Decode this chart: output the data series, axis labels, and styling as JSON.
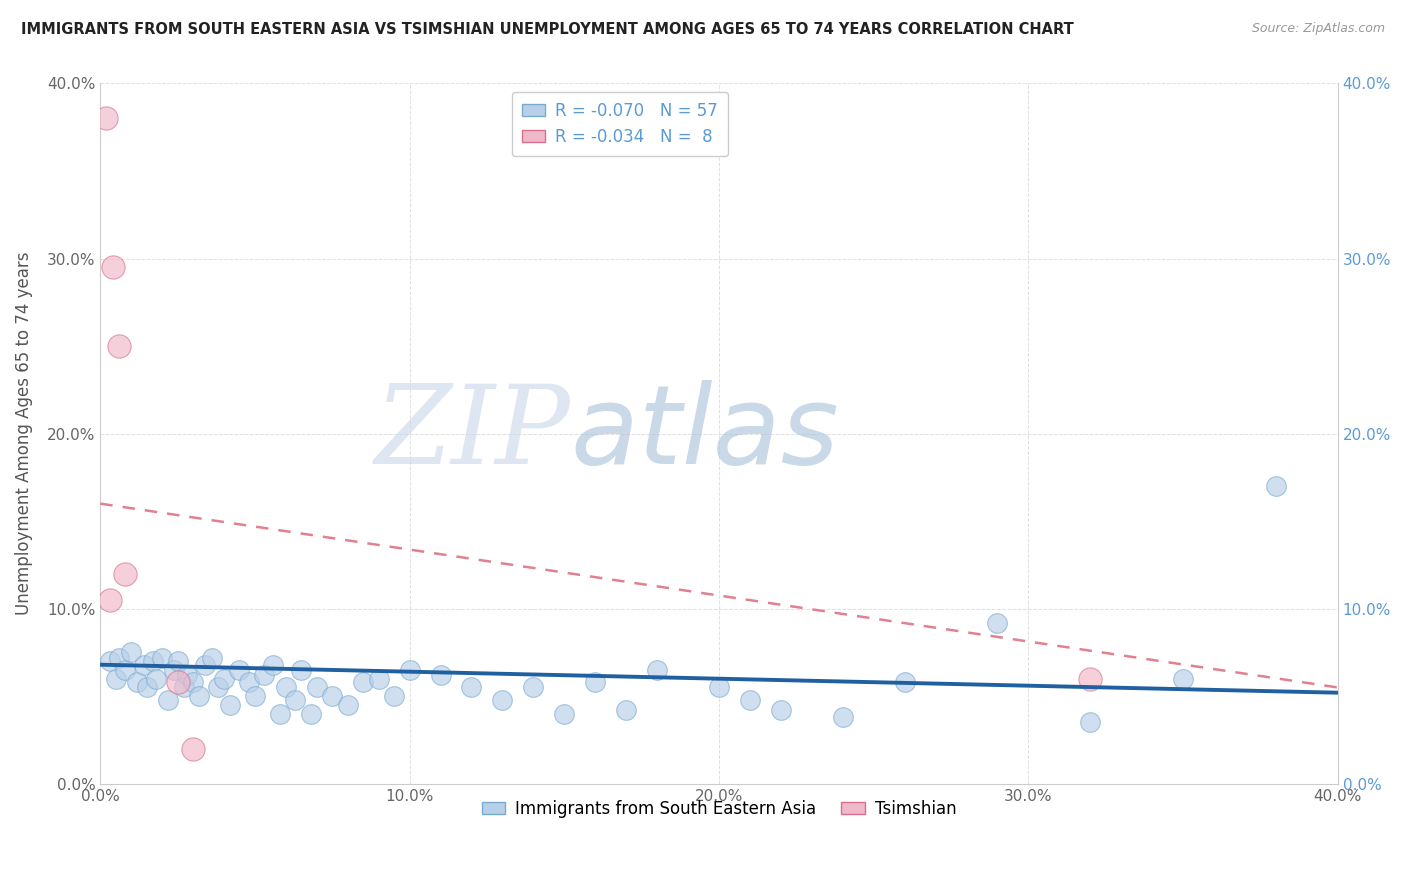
{
  "title": "IMMIGRANTS FROM SOUTH EASTERN ASIA VS TSIMSHIAN UNEMPLOYMENT AMONG AGES 65 TO 74 YEARS CORRELATION CHART",
  "source": "Source: ZipAtlas.com",
  "ylabel": "Unemployment Among Ages 65 to 74 years",
  "xlim": [
    0.0,
    0.4
  ],
  "ylim": [
    0.0,
    0.4
  ],
  "blue_scatter_x": [
    0.003,
    0.005,
    0.006,
    0.008,
    0.01,
    0.012,
    0.014,
    0.015,
    0.017,
    0.018,
    0.02,
    0.022,
    0.024,
    0.025,
    0.027,
    0.028,
    0.03,
    0.032,
    0.034,
    0.036,
    0.038,
    0.04,
    0.042,
    0.045,
    0.048,
    0.05,
    0.053,
    0.056,
    0.058,
    0.06,
    0.063,
    0.065,
    0.068,
    0.07,
    0.075,
    0.08,
    0.085,
    0.09,
    0.095,
    0.1,
    0.11,
    0.12,
    0.13,
    0.14,
    0.15,
    0.16,
    0.17,
    0.18,
    0.2,
    0.21,
    0.22,
    0.24,
    0.26,
    0.29,
    0.32,
    0.35,
    0.38
  ],
  "blue_scatter_y": [
    0.07,
    0.06,
    0.072,
    0.065,
    0.075,
    0.058,
    0.068,
    0.055,
    0.07,
    0.06,
    0.072,
    0.048,
    0.065,
    0.07,
    0.055,
    0.062,
    0.058,
    0.05,
    0.068,
    0.072,
    0.055,
    0.06,
    0.045,
    0.065,
    0.058,
    0.05,
    0.062,
    0.068,
    0.04,
    0.055,
    0.048,
    0.065,
    0.04,
    0.055,
    0.05,
    0.045,
    0.058,
    0.06,
    0.05,
    0.065,
    0.062,
    0.055,
    0.048,
    0.055,
    0.04,
    0.058,
    0.042,
    0.065,
    0.055,
    0.048,
    0.042,
    0.038,
    0.058,
    0.092,
    0.035,
    0.06,
    0.17
  ],
  "pink_scatter_x": [
    0.002,
    0.004,
    0.006,
    0.008,
    0.03,
    0.003,
    0.025,
    0.32
  ],
  "pink_scatter_y": [
    0.38,
    0.295,
    0.25,
    0.12,
    0.02,
    0.105,
    0.058,
    0.06
  ],
  "blue_trend_x": [
    0.0,
    0.4
  ],
  "blue_trend_y": [
    0.068,
    0.052
  ],
  "pink_trend_x": [
    0.0,
    0.4
  ],
  "pink_trend_y": [
    0.16,
    0.055
  ],
  "watermark_zip": "ZIP",
  "watermark_atlas": "atlas",
  "watermark_color_zip": "#c8d8e8",
  "watermark_color_atlas": "#a8c0d8",
  "background_color": "#ffffff",
  "grid_color": "#d8d8d8",
  "blue_scatter_color": "#b8cfe8",
  "blue_scatter_edge": "#7aaad0",
  "pink_scatter_color": "#f0b8c8",
  "pink_scatter_edge": "#d87090",
  "blue_line_color": "#2060a0",
  "pink_line_color": "#e08090",
  "right_axis_color": "#5b9bd5",
  "legend_r1": "R = -0.070   N = 57",
  "legend_r2": "R = -0.034   N =  8",
  "legend_label1": "Immigrants from South Eastern Asia",
  "legend_label2": "Tsimshian"
}
